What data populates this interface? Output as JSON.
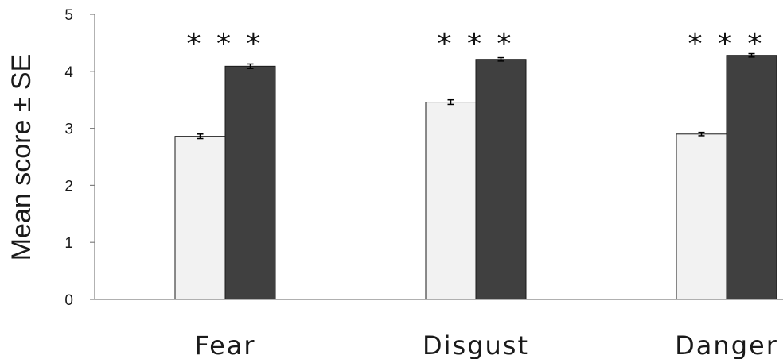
{
  "chart_data": {
    "type": "bar",
    "title": "",
    "xlabel": "",
    "ylabel": "Mean score ± SE",
    "ylim": [
      0,
      5
    ],
    "yticks": [
      "0",
      "1",
      "2",
      "3",
      "4",
      "5"
    ],
    "grid": false,
    "categories": [
      "Fear",
      "Disgust",
      "Danger"
    ],
    "series": [
      {
        "values": [
          2.86,
          3.46,
          2.9
        ],
        "errors": [
          0.04,
          0.04,
          0.03
        ],
        "color": "#f2f2f2"
      },
      {
        "values": [
          4.09,
          4.21,
          4.28
        ],
        "errors": [
          0.04,
          0.03,
          0.03
        ],
        "color": "#404040"
      }
    ],
    "annotations": [
      "* * *",
      "* * *",
      "* * *"
    ]
  }
}
